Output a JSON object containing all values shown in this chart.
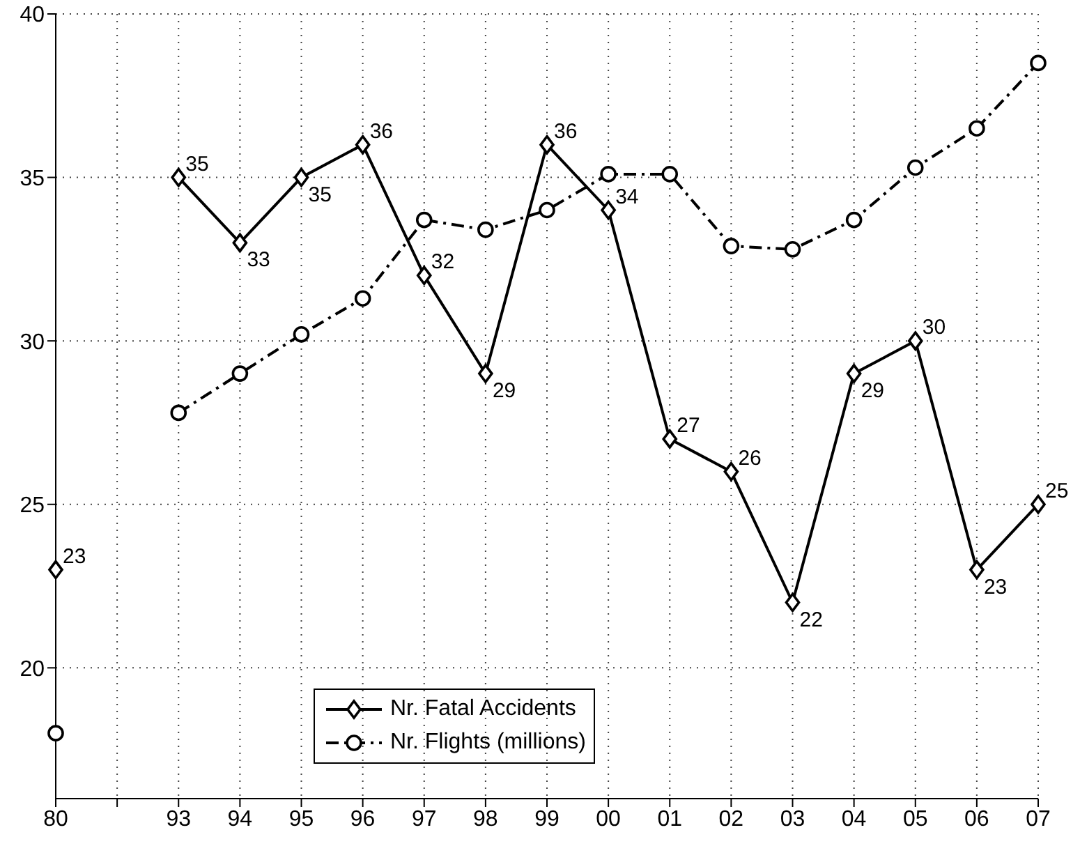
{
  "chart_data": {
    "type": "line",
    "categories": [
      "80",
      null,
      "93",
      "94",
      "95",
      "96",
      "97",
      "98",
      "99",
      "00",
      "01",
      "02",
      "03",
      "04",
      "05",
      "06",
      "07"
    ],
    "series": [
      {
        "name": "Nr. Fatal Accidents",
        "color": "#000000",
        "marker": "diamond",
        "line_style": "solid",
        "values": [
          23,
          null,
          35,
          33,
          35,
          36,
          32,
          29,
          36,
          34,
          27,
          26,
          22,
          29,
          30,
          23,
          25
        ],
        "value_labels": [
          "23",
          null,
          "35",
          "33",
          "35",
          "36",
          "32",
          "29",
          "36",
          "34",
          "27",
          "26",
          "22",
          "29",
          "30",
          "23",
          "25"
        ]
      },
      {
        "name": "Nr. Flights (millions)",
        "color": "#000000",
        "marker": "circle",
        "line_style": "dashed",
        "values": [
          18.0,
          null,
          27.8,
          29.0,
          30.2,
          31.3,
          33.7,
          33.4,
          34.0,
          35.1,
          35.1,
          32.9,
          32.8,
          33.7,
          35.3,
          36.5,
          38.5
        ]
      }
    ],
    "ylim": [
      16,
      40
    ],
    "yticks": [
      20,
      25,
      30,
      35,
      40
    ],
    "grid": true,
    "legend": "bottom"
  }
}
